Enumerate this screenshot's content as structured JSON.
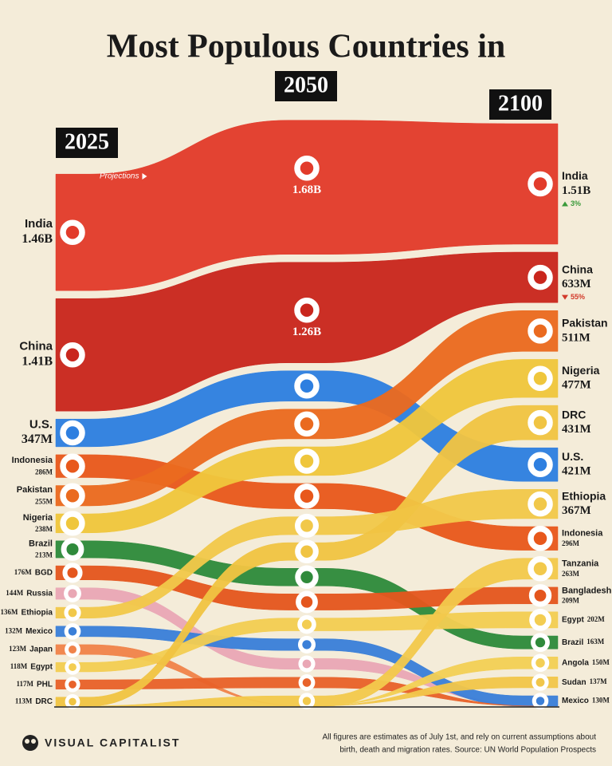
{
  "chart_data": {
    "type": "bump",
    "title": "Most Populous Countries in",
    "categories": [
      "2025",
      "2050",
      "2100"
    ],
    "annotation": "Projections",
    "series": [
      {
        "name": "India",
        "color": "#e23b2b",
        "labels": [
          "India",
          null,
          "India"
        ],
        "values": [
          1460,
          1680,
          1510
        ],
        "value_labels": [
          "1.46B",
          "1.68B",
          "1.51B"
        ],
        "change": 3,
        "change_label": "3%"
      },
      {
        "name": "China",
        "color": "#c9261d",
        "labels": [
          "China",
          null,
          "China"
        ],
        "values": [
          1410,
          1260,
          633
        ],
        "value_labels": [
          "1.41B",
          "1.26B",
          "633M"
        ],
        "change": -55,
        "change_label": "55%"
      },
      {
        "name": "U.S.",
        "color": "#2e7fe0",
        "labels": [
          "U.S.",
          null,
          "U.S."
        ],
        "values": [
          347,
          381,
          421
        ],
        "value_labels": [
          "347M",
          null,
          "421M"
        ]
      },
      {
        "name": "Indonesia",
        "color": "#e8581c",
        "labels": [
          "Indonesia",
          null,
          "Indonesia"
        ],
        "values": [
          286,
          317,
          296
        ],
        "value_labels": [
          "286M",
          null,
          "296M"
        ]
      },
      {
        "name": "Pakistan",
        "color": "#ea6a1f",
        "labels": [
          "Pakistan",
          null,
          "Pakistan"
        ],
        "values": [
          255,
          372,
          511
        ],
        "value_labels": [
          "255M",
          null,
          "511M"
        ]
      },
      {
        "name": "Nigeria",
        "color": "#efc63c",
        "labels": [
          "Nigeria",
          null,
          "Nigeria"
        ],
        "values": [
          238,
          359,
          477
        ],
        "value_labels": [
          "238M",
          null,
          "477M"
        ]
      },
      {
        "name": "Brazil",
        "color": "#2f8a3b",
        "labels": [
          "Brazil",
          null,
          "Brazil"
        ],
        "values": [
          213,
          220,
          163
        ],
        "value_labels": [
          "213M",
          null,
          "163M"
        ]
      },
      {
        "name": "Bangladesh",
        "color": "#e4561e",
        "labels": [
          "BGD",
          null,
          "Bangladesh"
        ],
        "values": [
          176,
          203,
          209
        ],
        "value_labels": [
          "176M",
          null,
          "209M"
        ]
      },
      {
        "name": "Russia",
        "color": "#e9a7b5",
        "labels": [
          "Russia",
          null,
          null
        ],
        "values": [
          144,
          136,
          null
        ],
        "value_labels": [
          "144M",
          null,
          null
        ]
      },
      {
        "name": "Ethiopia",
        "color": "#f1c84a",
        "labels": [
          "Ethiopia",
          null,
          "Ethiopia"
        ],
        "values": [
          136,
          225,
          367
        ],
        "value_labels": [
          "136M",
          null,
          "367M"
        ]
      },
      {
        "name": "Mexico",
        "color": "#3a7fd8",
        "labels": [
          "Mexico",
          null,
          "Mexico"
        ],
        "values": [
          132,
          146,
          130
        ],
        "value_labels": [
          "132M",
          null,
          "130M"
        ]
      },
      {
        "name": "Japan",
        "color": "#f0834a",
        "labels": [
          "Japan",
          null,
          null
        ],
        "values": [
          123,
          null,
          null
        ],
        "value_labels": [
          "123M",
          null,
          null
        ]
      },
      {
        "name": "Egypt",
        "color": "#f3cd52",
        "labels": [
          "Egypt",
          null,
          "Egypt"
        ],
        "values": [
          118,
          160,
          202
        ],
        "value_labels": [
          "118M",
          null,
          "202M"
        ]
      },
      {
        "name": "Philippines",
        "color": "#e8622a",
        "labels": [
          "PHL",
          null,
          null
        ],
        "values": [
          117,
          133,
          null
        ],
        "value_labels": [
          "117M",
          null,
          null
        ]
      },
      {
        "name": "DRC",
        "color": "#f0c443",
        "labels": [
          "DRC",
          null,
          "DRC"
        ],
        "values": [
          113,
          222,
          431
        ],
        "value_labels": [
          "113M",
          null,
          "431M"
        ]
      },
      {
        "name": "Tanzania",
        "color": "#f2c94c",
        "labels": [
          null,
          null,
          "Tanzania"
        ],
        "values": [
          null,
          129,
          263
        ],
        "value_labels": [
          null,
          null,
          "263M"
        ]
      },
      {
        "name": "Angola",
        "color": "#f3cf55",
        "labels": [
          null,
          null,
          "Angola"
        ],
        "values": [
          null,
          null,
          150
        ],
        "value_labels": [
          null,
          null,
          "150M"
        ]
      },
      {
        "name": "Sudan",
        "color": "#f1c64a",
        "labels": [
          null,
          null,
          "Sudan"
        ],
        "values": [
          null,
          null,
          137
        ],
        "value_labels": [
          null,
          null,
          "137M"
        ]
      }
    ],
    "brand": "VISUAL CAPITALIST",
    "footnote": [
      "All figures are estimates as of July 1st, and rely on current assumptions about",
      "birth, death and migration rates. Source: UN World Population Prospects"
    ]
  }
}
